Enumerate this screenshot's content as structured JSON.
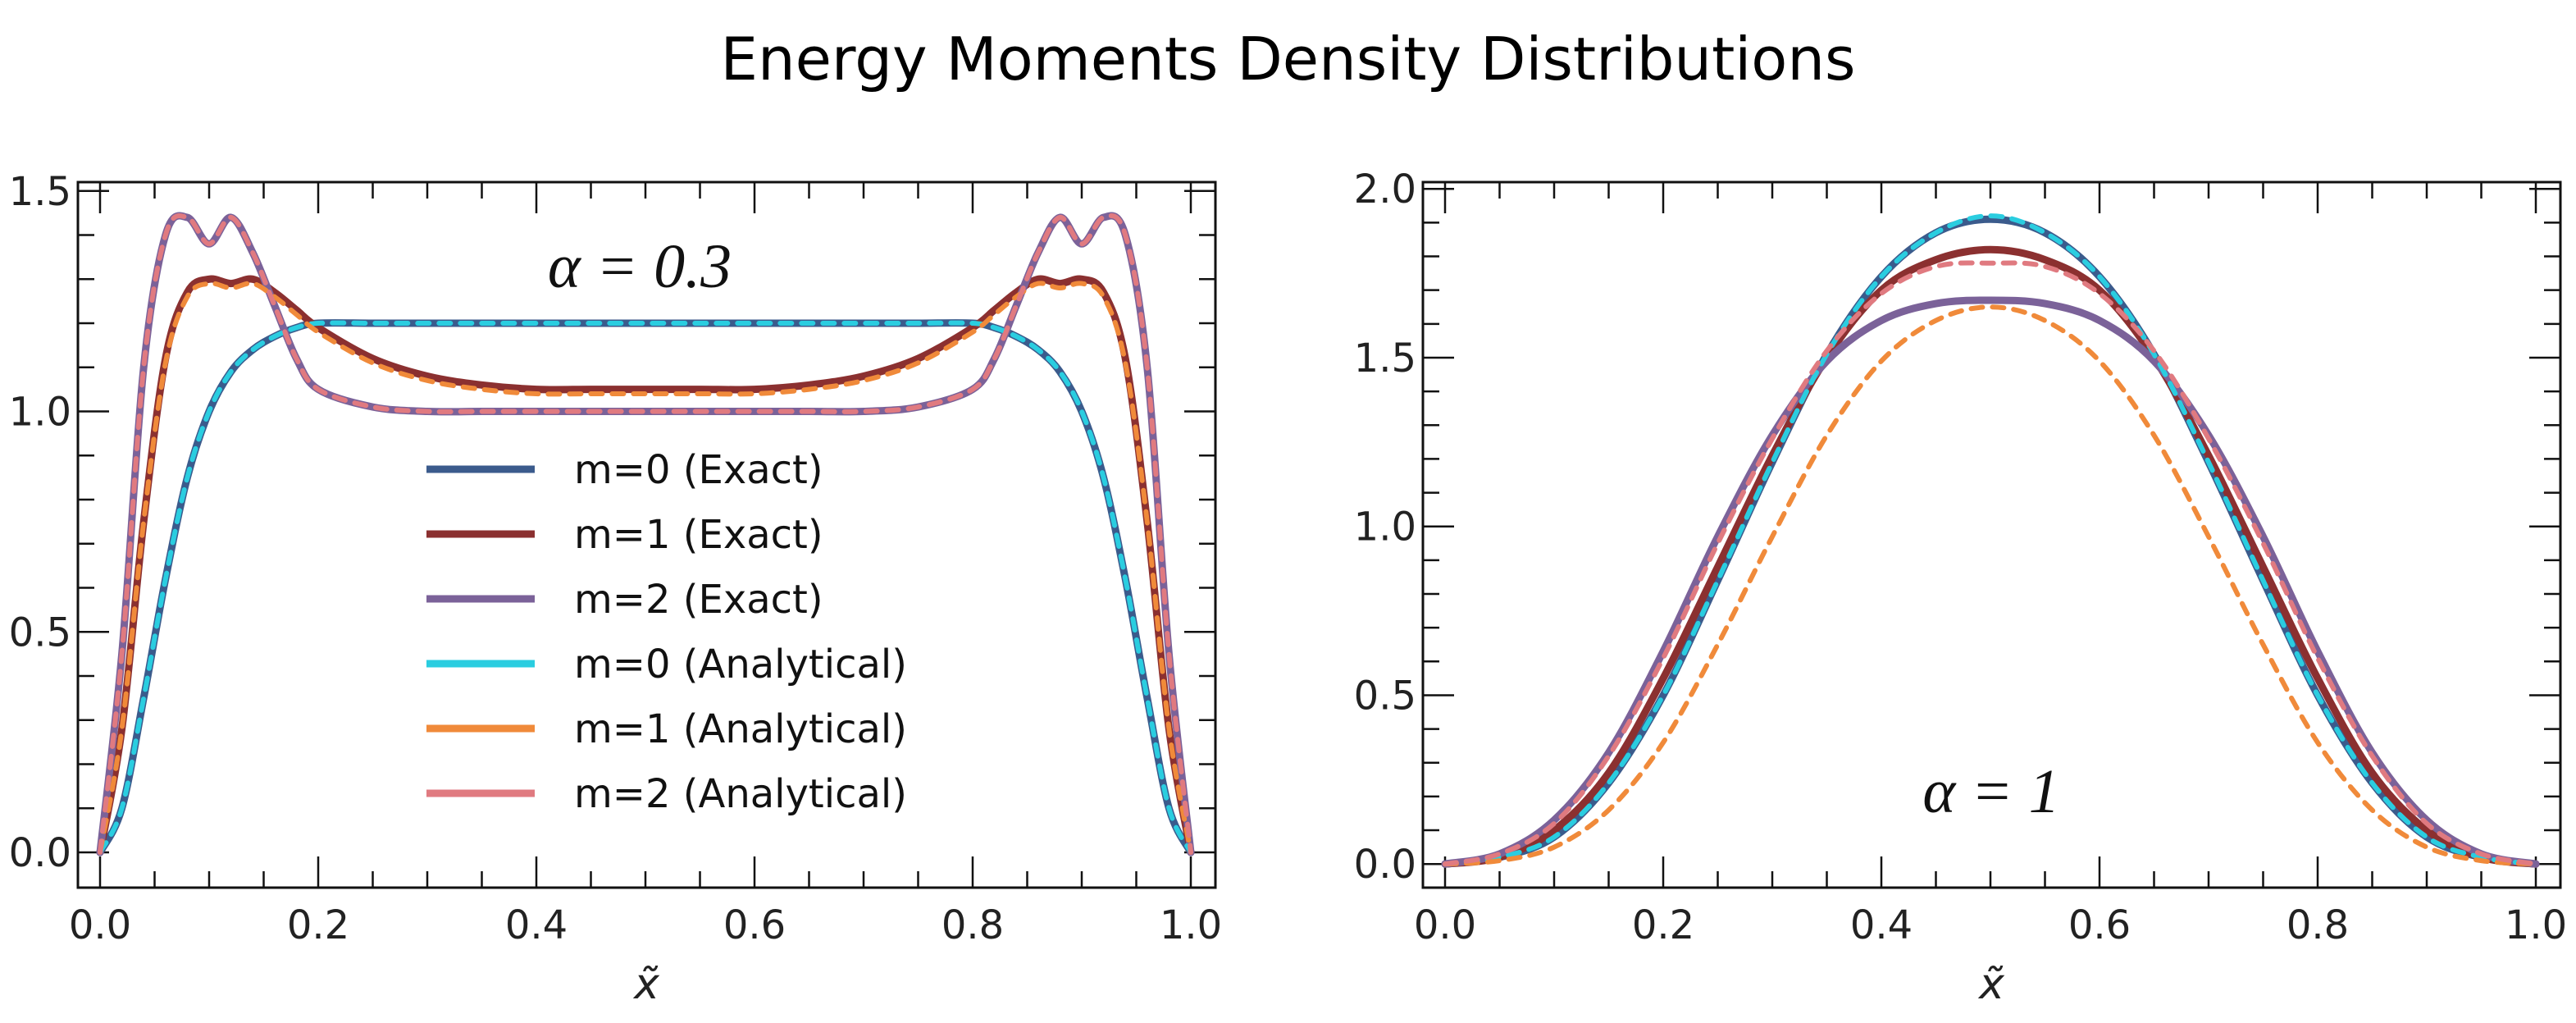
{
  "page_title": "Energy Moments Density Distributions",
  "chart_data": [
    {
      "type": "line",
      "title": "",
      "annotation": "α = 0.3",
      "alpha": 0.3,
      "xlabel": "x̃",
      "ylabel": "",
      "xlim": [
        0.0,
        1.0
      ],
      "ylim": [
        -0.08,
        1.52
      ],
      "xticks": [
        "0.0",
        "0.2",
        "0.4",
        "0.6",
        "0.8",
        "1.0"
      ],
      "yticks": [
        "0.0",
        "0.5",
        "1.0",
        "1.5"
      ],
      "x": [
        0.0,
        0.02,
        0.04,
        0.06,
        0.08,
        0.1,
        0.12,
        0.14,
        0.16,
        0.18,
        0.2,
        0.25,
        0.3,
        0.35,
        0.4,
        0.45,
        0.5,
        0.55,
        0.6,
        0.65,
        0.7,
        0.75,
        0.8,
        0.82,
        0.84,
        0.86,
        0.88,
        0.9,
        0.92,
        0.94,
        0.96,
        0.98,
        1.0
      ],
      "series": [
        {
          "name": "m=0 (Exact)",
          "style": "solid",
          "color": "#3B5B8C",
          "values": [
            0.0,
            0.1,
            0.35,
            0.62,
            0.85,
            1.0,
            1.09,
            1.14,
            1.17,
            1.19,
            1.2,
            1.2,
            1.2,
            1.2,
            1.2,
            1.2,
            1.2,
            1.2,
            1.2,
            1.2,
            1.2,
            1.2,
            1.2,
            1.19,
            1.17,
            1.14,
            1.09,
            1.0,
            0.85,
            0.62,
            0.35,
            0.1,
            0.0
          ]
        },
        {
          "name": "m=1 (Exact)",
          "style": "solid",
          "color": "#8B3030",
          "values": [
            0.0,
            0.28,
            0.75,
            1.12,
            1.27,
            1.3,
            1.29,
            1.3,
            1.27,
            1.23,
            1.19,
            1.12,
            1.08,
            1.06,
            1.05,
            1.05,
            1.05,
            1.05,
            1.05,
            1.06,
            1.08,
            1.12,
            1.19,
            1.23,
            1.27,
            1.3,
            1.29,
            1.3,
            1.27,
            1.12,
            0.75,
            0.28,
            0.0
          ]
        },
        {
          "name": "m=2 (Exact)",
          "style": "solid",
          "color": "#7B6299",
          "values": [
            0.0,
            0.45,
            1.1,
            1.4,
            1.44,
            1.38,
            1.44,
            1.36,
            1.24,
            1.12,
            1.05,
            1.01,
            1.0,
            1.0,
            1.0,
            1.0,
            1.0,
            1.0,
            1.0,
            1.0,
            1.0,
            1.01,
            1.05,
            1.12,
            1.24,
            1.36,
            1.44,
            1.38,
            1.44,
            1.4,
            1.1,
            0.45,
            0.0
          ]
        },
        {
          "name": "m=0 (Analytical)",
          "style": "dashed",
          "color": "#2ACDE0",
          "values": [
            0.0,
            0.1,
            0.35,
            0.62,
            0.85,
            1.0,
            1.09,
            1.14,
            1.17,
            1.19,
            1.2,
            1.2,
            1.2,
            1.2,
            1.2,
            1.2,
            1.2,
            1.2,
            1.2,
            1.2,
            1.2,
            1.2,
            1.2,
            1.19,
            1.17,
            1.14,
            1.09,
            1.0,
            0.85,
            0.62,
            0.35,
            0.1,
            0.0
          ]
        },
        {
          "name": "m=1 (Analytical)",
          "style": "dashed",
          "color": "#F08A3A",
          "values": [
            0.0,
            0.28,
            0.75,
            1.11,
            1.26,
            1.29,
            1.28,
            1.29,
            1.26,
            1.22,
            1.18,
            1.11,
            1.07,
            1.05,
            1.04,
            1.04,
            1.04,
            1.04,
            1.04,
            1.05,
            1.07,
            1.11,
            1.18,
            1.22,
            1.26,
            1.29,
            1.28,
            1.29,
            1.26,
            1.11,
            0.75,
            0.28,
            0.0
          ]
        },
        {
          "name": "m=2 (Analytical)",
          "style": "dashed",
          "color": "#E07A80",
          "values": [
            0.0,
            0.45,
            1.1,
            1.4,
            1.44,
            1.38,
            1.44,
            1.36,
            1.24,
            1.12,
            1.05,
            1.01,
            1.0,
            1.0,
            1.0,
            1.0,
            1.0,
            1.0,
            1.0,
            1.0,
            1.0,
            1.01,
            1.05,
            1.12,
            1.24,
            1.36,
            1.44,
            1.38,
            1.44,
            1.4,
            1.1,
            0.45,
            0.0
          ]
        }
      ],
      "legend": [
        "m=0 (Exact)",
        "m=1 (Exact)",
        "m=2 (Exact)",
        "m=0 (Analytical)",
        "m=1 (Analytical)",
        "m=2 (Analytical)"
      ],
      "legend_position": "center"
    },
    {
      "type": "line",
      "title": "",
      "annotation": "α = 1",
      "alpha": 1,
      "xlabel": "x̃",
      "ylabel": "",
      "xlim": [
        0.0,
        1.0
      ],
      "ylim": [
        -0.07,
        2.02
      ],
      "xticks": [
        "0.0",
        "0.2",
        "0.4",
        "0.6",
        "0.8",
        "1.0"
      ],
      "yticks": [
        "0.0",
        "0.5",
        "1.0",
        "1.5",
        "2.0"
      ],
      "x": [
        0.0,
        0.05,
        0.1,
        0.15,
        0.2,
        0.25,
        0.3,
        0.35,
        0.4,
        0.45,
        0.5,
        0.55,
        0.6,
        0.65,
        0.7,
        0.75,
        0.8,
        0.85,
        0.9,
        0.95,
        1.0
      ],
      "series": [
        {
          "name": "m=0 (Exact)",
          "style": "solid",
          "color": "#3B5B8C",
          "values": [
            0.0,
            0.02,
            0.08,
            0.24,
            0.5,
            0.84,
            1.19,
            1.51,
            1.74,
            1.87,
            1.91,
            1.87,
            1.74,
            1.51,
            1.19,
            0.84,
            0.5,
            0.24,
            0.08,
            0.02,
            0.0
          ]
        },
        {
          "name": "m=1 (Exact)",
          "style": "solid",
          "color": "#8B3030",
          "values": [
            0.0,
            0.02,
            0.1,
            0.27,
            0.55,
            0.88,
            1.21,
            1.5,
            1.7,
            1.79,
            1.82,
            1.79,
            1.7,
            1.5,
            1.21,
            0.88,
            0.55,
            0.27,
            0.1,
            0.02,
            0.0
          ]
        },
        {
          "name": "m=2 (Exact)",
          "style": "solid",
          "color": "#7B6299",
          "values": [
            0.0,
            0.03,
            0.13,
            0.33,
            0.63,
            0.97,
            1.27,
            1.49,
            1.61,
            1.66,
            1.67,
            1.66,
            1.61,
            1.49,
            1.27,
            0.97,
            0.63,
            0.33,
            0.13,
            0.03,
            0.0
          ]
        },
        {
          "name": "m=0 (Analytical)",
          "style": "dashed",
          "color": "#2ACDE0",
          "values": [
            0.0,
            0.02,
            0.08,
            0.24,
            0.5,
            0.84,
            1.19,
            1.51,
            1.74,
            1.87,
            1.92,
            1.87,
            1.74,
            1.51,
            1.19,
            0.84,
            0.5,
            0.24,
            0.08,
            0.02,
            0.0
          ]
        },
        {
          "name": "m=1 (Analytical)",
          "style": "dashed",
          "color": "#F08A3A",
          "values": [
            0.0,
            0.01,
            0.05,
            0.16,
            0.36,
            0.65,
            0.97,
            1.27,
            1.49,
            1.61,
            1.65,
            1.61,
            1.49,
            1.27,
            0.97,
            0.65,
            0.36,
            0.16,
            0.05,
            0.01,
            0.0
          ]
        },
        {
          "name": "m=2 (Analytical)",
          "style": "dashed",
          "color": "#E07A80",
          "values": [
            0.0,
            0.03,
            0.12,
            0.32,
            0.61,
            0.95,
            1.26,
            1.52,
            1.69,
            1.77,
            1.78,
            1.77,
            1.69,
            1.52,
            1.26,
            0.95,
            0.61,
            0.32,
            0.12,
            0.03,
            0.0
          ]
        }
      ]
    }
  ]
}
